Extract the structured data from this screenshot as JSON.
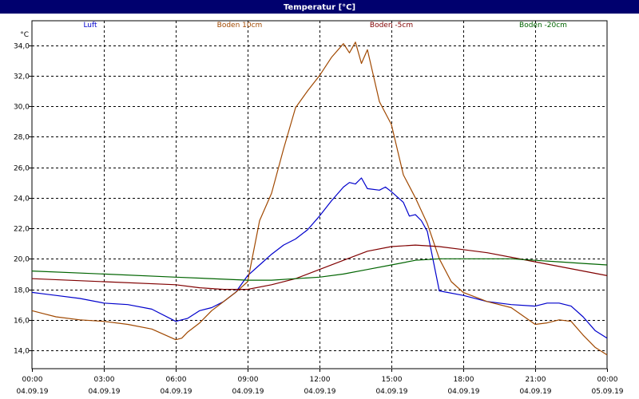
{
  "window": {
    "title": "Temperatur [°C]",
    "title_bg": "#00006e"
  },
  "chart_data": {
    "type": "line",
    "title": "Temperatur [°C]",
    "ylabel": "°C",
    "xlabel": "",
    "ylim": [
      12.8,
      35.6
    ],
    "xlim_hours": [
      0,
      24
    ],
    "grid": true,
    "legend_placement": "top",
    "y_ticks": [
      "34,0",
      "32,0",
      "30,0",
      "28,0",
      "26,0",
      "24,0",
      "22,0",
      "20,0",
      "18,0",
      "16,0",
      "14,0"
    ],
    "x_ticks": [
      {
        "time": "00:00",
        "date": "04.09.19"
      },
      {
        "time": "03:00",
        "date": "04.09.19"
      },
      {
        "time": "06:00",
        "date": "04.09.19"
      },
      {
        "time": "09:00",
        "date": "04.09.19"
      },
      {
        "time": "12:00",
        "date": "04.09.19"
      },
      {
        "time": "15:00",
        "date": "04.09.19"
      },
      {
        "time": "18:00",
        "date": "04.09.19"
      },
      {
        "time": "21:00",
        "date": "04.09.19"
      },
      {
        "time": "00:00",
        "date": "05.09.19"
      }
    ],
    "series": [
      {
        "name": "Luft",
        "color": "#0000cc",
        "x": [
          "00:00",
          "00:30",
          "01:00",
          "02:00",
          "03:00",
          "04:00",
          "05:00",
          "06:00",
          "06:30",
          "07:00",
          "07:30",
          "08:00",
          "08:30",
          "09:00",
          "09:30",
          "10:00",
          "10:30",
          "11:00",
          "11:30",
          "12:00",
          "12:30",
          "13:00",
          "13:15",
          "13:30",
          "13:45",
          "14:00",
          "14:30",
          "14:45",
          "15:00",
          "15:30",
          "15:45",
          "16:00",
          "16:15",
          "16:30",
          "17:00",
          "18:00",
          "19:00",
          "20:00",
          "21:00",
          "21:30",
          "22:00",
          "22:30",
          "23:00",
          "23:30",
          "24:00"
        ],
        "values": [
          17.8,
          17.7,
          17.6,
          17.4,
          17.1,
          17.0,
          16.7,
          15.9,
          16.1,
          16.6,
          16.8,
          17.2,
          17.8,
          18.9,
          19.6,
          20.3,
          20.9,
          21.3,
          21.9,
          22.8,
          23.8,
          24.7,
          25.0,
          24.9,
          25.3,
          24.6,
          24.5,
          24.7,
          24.4,
          23.7,
          22.8,
          22.9,
          22.5,
          21.8,
          17.9,
          17.6,
          17.2,
          17.0,
          16.9,
          17.1,
          17.1,
          16.9,
          16.2,
          15.3,
          14.8
        ]
      },
      {
        "name": "Boden 10cm",
        "color": "#a04800",
        "x": [
          "00:00",
          "00:30",
          "01:00",
          "02:00",
          "03:00",
          "04:00",
          "05:00",
          "06:00",
          "06:15",
          "06:30",
          "07:00",
          "07:30",
          "08:00",
          "08:30",
          "09:00",
          "09:30",
          "10:00",
          "10:30",
          "11:00",
          "11:30",
          "12:00",
          "12:30",
          "13:00",
          "13:15",
          "13:30",
          "13:45",
          "14:00",
          "14:30",
          "15:00",
          "15:30",
          "16:00",
          "16:30",
          "17:00",
          "17:30",
          "18:00",
          "19:00",
          "20:00",
          "21:00",
          "21:30",
          "22:00",
          "22:30",
          "23:00",
          "23:30",
          "24:00"
        ],
        "values": [
          16.6,
          16.4,
          16.2,
          16.0,
          15.9,
          15.7,
          15.4,
          14.7,
          14.8,
          15.2,
          15.8,
          16.6,
          17.2,
          17.8,
          18.5,
          22.5,
          24.3,
          27.2,
          29.9,
          31.0,
          32.0,
          33.2,
          34.1,
          33.5,
          34.2,
          32.8,
          33.7,
          30.3,
          28.8,
          25.5,
          24.0,
          22.3,
          20.0,
          18.5,
          17.8,
          17.2,
          16.8,
          15.7,
          15.8,
          16.0,
          15.9,
          15.0,
          14.2,
          13.7
        ]
      },
      {
        "name": "Boden -5cm",
        "color": "#800000",
        "x": [
          "00:00",
          "03:00",
          "06:00",
          "07:00",
          "08:00",
          "09:00",
          "10:00",
          "11:00",
          "12:00",
          "13:00",
          "14:00",
          "15:00",
          "16:00",
          "17:00",
          "18:00",
          "19:00",
          "20:00",
          "21:00",
          "22:00",
          "23:00",
          "24:00"
        ],
        "values": [
          18.7,
          18.5,
          18.3,
          18.1,
          18.0,
          18.0,
          18.3,
          18.7,
          19.3,
          19.9,
          20.5,
          20.8,
          20.9,
          20.8,
          20.6,
          20.4,
          20.1,
          19.8,
          19.5,
          19.2,
          18.9
        ]
      },
      {
        "name": "Boden -20cm",
        "color": "#006400",
        "x": [
          "00:00",
          "03:00",
          "06:00",
          "09:00",
          "10:00",
          "11:00",
          "12:00",
          "13:00",
          "14:00",
          "15:00",
          "16:00",
          "17:00",
          "18:00",
          "19:00",
          "20:00",
          "21:00",
          "22:00",
          "23:00",
          "24:00"
        ],
        "values": [
          19.2,
          19.0,
          18.8,
          18.6,
          18.6,
          18.7,
          18.8,
          19.0,
          19.3,
          19.6,
          19.9,
          20.0,
          20.0,
          20.0,
          20.0,
          19.9,
          19.8,
          19.7,
          19.6
        ]
      }
    ]
  }
}
